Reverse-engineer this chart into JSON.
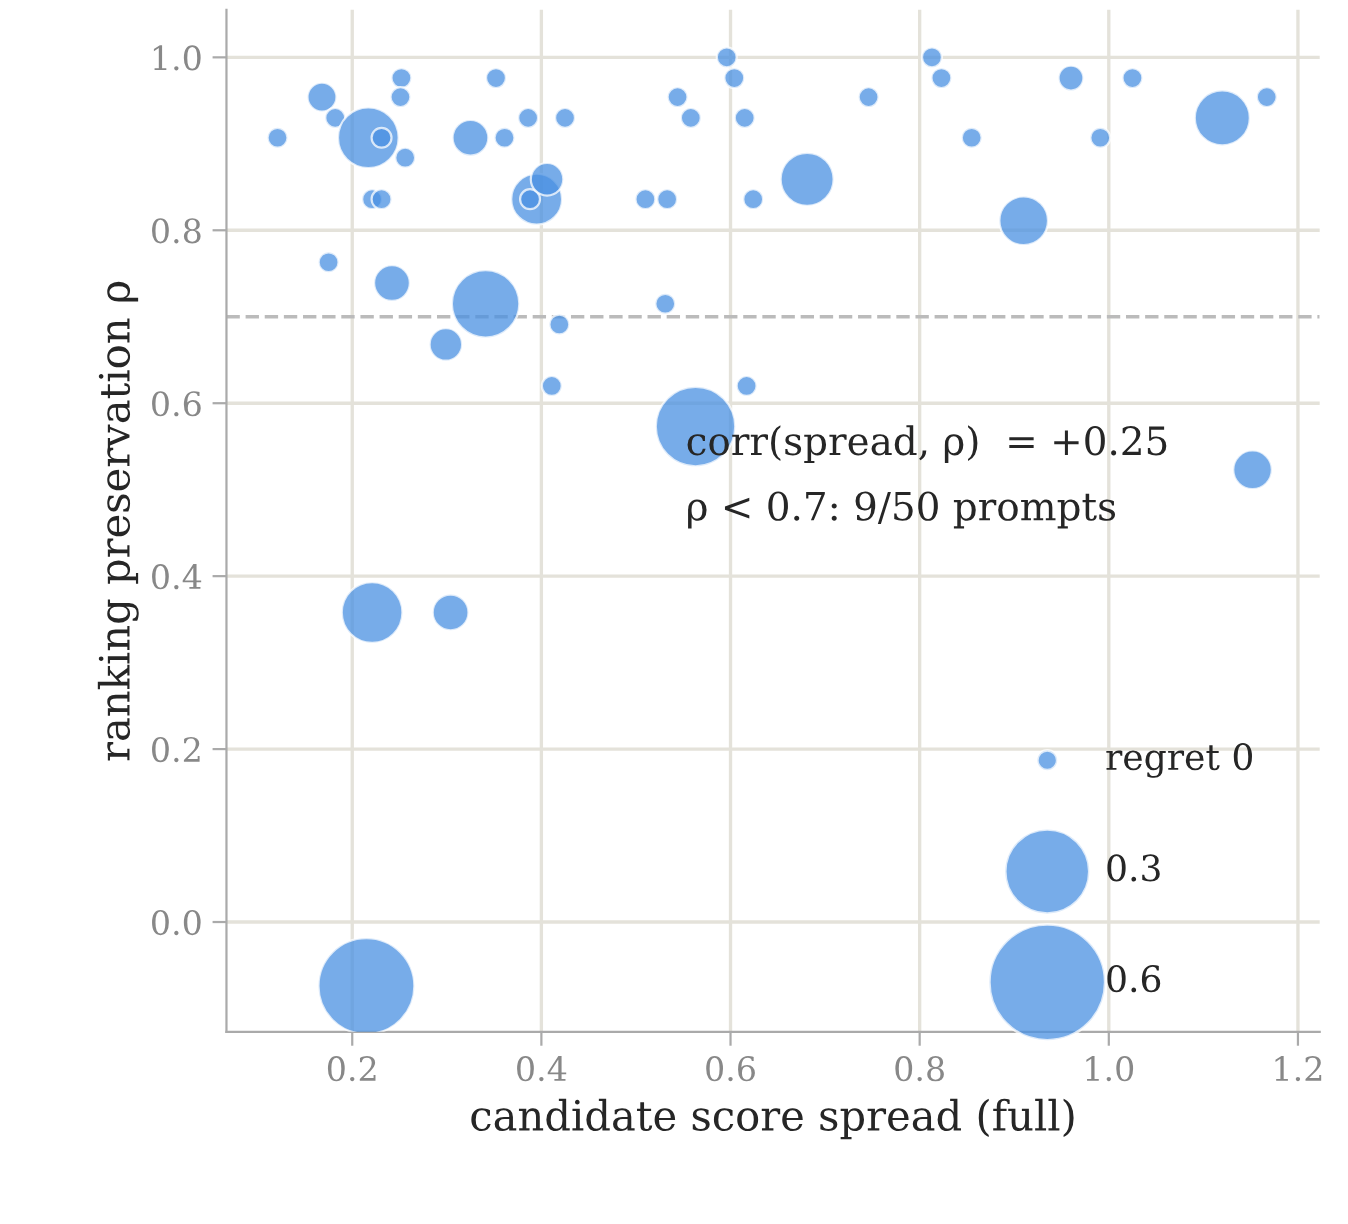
{
  "chart_data": {
    "type": "bubble",
    "xlabel": "candidate score spread (full)",
    "ylabel": "ranking preservation ρ",
    "xlim": [
      0.067,
      1.223
    ],
    "ylim": [
      -0.127,
      1.055
    ],
    "xticks": [
      0.2,
      0.4,
      0.6,
      0.8,
      {
        "value": 1,
        "label": "1.0"
      },
      1.2
    ],
    "yticks": [
      {
        "value": 0,
        "label": "0.0"
      },
      0.2,
      0.4,
      0.6,
      0.8,
      {
        "value": 1,
        "label": "1.0"
      }
    ],
    "grid": true,
    "size_legend": [
      {
        "value": 0.043,
        "label": "regret 0"
      },
      {
        "value": 0.77,
        "label": "0.3"
      },
      {
        "value": 1.46,
        "label": "0.6"
      }
    ],
    "ref_lines": [
      {
        "axis": "y",
        "value": 0.7,
        "color": "#bbbbbb",
        "line_style": "dashed"
      }
    ],
    "annotations": [
      "corr(spread, ρ)  = +0.25",
      "ρ < 0.7: 9/50 prompts"
    ],
    "series": [
      {
        "color": "#4a90e2",
        "x": [
          0.121,
          0.168,
          0.182,
          0.217,
          0.231,
          0.252,
          0.251,
          0.256,
          0.221,
          0.231,
          0.325,
          0.352,
          0.361,
          0.386,
          0.425,
          0.395,
          0.388,
          0.406,
          0.51,
          0.533,
          0.624,
          0.544,
          0.558,
          0.596,
          0.604,
          0.615,
          0.175,
          0.242,
          0.341,
          0.531,
          0.419,
          0.299,
          0.411,
          0.617,
          0.563,
          0.746,
          0.681,
          0.813,
          0.823,
          0.855,
          0.91,
          0.96,
          0.991,
          1.025,
          1.12,
          1.167,
          1.152,
          0.221,
          0.304,
          0.215
        ],
        "values": [
          0.907,
          0.954,
          0.93,
          0.907,
          0.907,
          0.976,
          0.954,
          0.884,
          0.836,
          0.836,
          0.907,
          0.976,
          0.907,
          0.93,
          0.93,
          0.836,
          0.836,
          0.859,
          0.836,
          0.836,
          0.836,
          0.954,
          0.93,
          1.0,
          0.976,
          0.93,
          0.763,
          0.739,
          0.715,
          0.715,
          0.691,
          0.668,
          0.62,
          0.62,
          0.573,
          0.954,
          0.859,
          1.0,
          0.976,
          0.907,
          0.811,
          0.976,
          0.907,
          0.976,
          0.93,
          0.954,
          0.523,
          0.358,
          0.358,
          -0.074
        ],
        "sizes": [
          0.043,
          0.091,
          0.043,
          0.4,
          0.043,
          0.043,
          0.043,
          0.043,
          0.043,
          0.043,
          0.139,
          0.043,
          0.043,
          0.043,
          0.043,
          0.281,
          0.043,
          0.115,
          0.043,
          0.043,
          0.043,
          0.043,
          0.043,
          0.043,
          0.043,
          0.043,
          0.043,
          0.139,
          0.495,
          0.043,
          0.043,
          0.115,
          0.043,
          0.043,
          0.686,
          0.043,
          0.305,
          0.043,
          0.043,
          0.043,
          0.257,
          0.067,
          0.043,
          0.043,
          0.329,
          0.043,
          0.162,
          0.4,
          0.139,
          1
        ]
      }
    ]
  }
}
